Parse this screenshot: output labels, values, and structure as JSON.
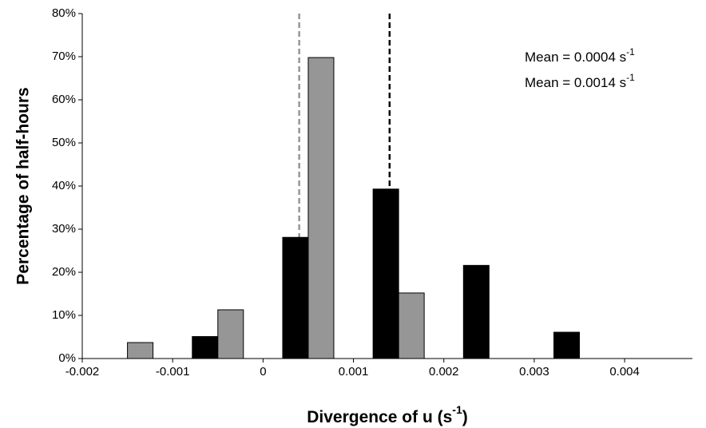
{
  "chart_data": {
    "type": "bar",
    "y_label": "Percentage of half-hours",
    "x_label": [
      "Divergence of u (s",
      "-1",
      ")"
    ],
    "x": [
      -0.0015,
      -0.0005,
      0.0005,
      0.0015,
      0.0025,
      0.0035
    ],
    "series": [
      {
        "name": "Black",
        "color": "#000000",
        "values": [
          0,
          5.1,
          28.1,
          39.3,
          21.6,
          6.1
        ]
      },
      {
        "name": "Gray",
        "color": "#969696",
        "values": [
          3.7,
          11.3,
          69.8,
          15.2,
          0,
          0
        ]
      }
    ],
    "mean_lines": [
      {
        "value": 0.0004,
        "color": "#969696",
        "label": "Mean = 0.0004 s",
        "label_sup": "-1"
      },
      {
        "value": 0.0014,
        "color": "#000000",
        "label": "Mean = 0.0014 s",
        "label_sup": "-1"
      }
    ],
    "xlim": [
      -0.002,
      0.00475
    ],
    "xticks": [
      -0.002,
      -0.001,
      0,
      0.001,
      0.002,
      0.003,
      0.004
    ],
    "ylim": [
      0,
      80
    ],
    "yticks": [
      {
        "value": 0,
        "label": "0%"
      },
      {
        "value": 10,
        "label": "10%"
      },
      {
        "value": 20,
        "label": "20%"
      },
      {
        "value": 30,
        "label": "30%"
      },
      {
        "value": 40,
        "label": "40%"
      },
      {
        "value": 50,
        "label": "50%"
      },
      {
        "value": 60,
        "label": "60%"
      },
      {
        "value": 70,
        "label": "70%"
      },
      {
        "value": 80,
        "label": "80%"
      }
    ]
  }
}
